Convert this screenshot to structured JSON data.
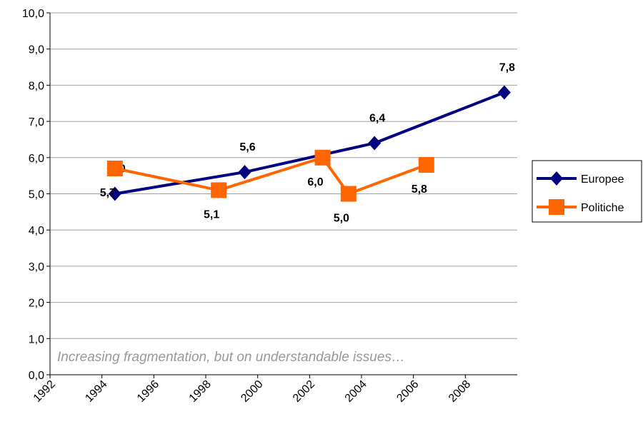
{
  "chart_data": {
    "type": "line",
    "annotation": "Increasing fragmentation, but on understandable issues…",
    "xlim": [
      1992,
      2010
    ],
    "xticks": [
      1992,
      1994,
      1996,
      1998,
      2000,
      2002,
      2004,
      2006,
      2008
    ],
    "ylim": [
      0,
      10
    ],
    "yticks": [
      {
        "value": 0,
        "label": "0,0"
      },
      {
        "value": 1,
        "label": "1,0"
      },
      {
        "value": 2,
        "label": "2,0"
      },
      {
        "value": 3,
        "label": "3,0"
      },
      {
        "value": 4,
        "label": "4,0"
      },
      {
        "value": 5,
        "label": "5,0"
      },
      {
        "value": 6,
        "label": "6,0"
      },
      {
        "value": 7,
        "label": "7,0"
      },
      {
        "value": 8,
        "label": "8,0"
      },
      {
        "value": 9,
        "label": "9,0"
      },
      {
        "value": 10,
        "label": "10,0"
      }
    ],
    "grid": true,
    "legend": "right",
    "series": [
      {
        "name": "Europee",
        "color": "#000080",
        "marker": "diamond",
        "x": [
          1994.5,
          1999.5,
          2004.5,
          2009.5
        ],
        "values": [
          5.0,
          5.6,
          6.4,
          7.8
        ],
        "value_labels": [
          "5,0",
          "5,6",
          "6,4",
          "7,8"
        ]
      },
      {
        "name": "Politiche",
        "color": "#ff6600",
        "marker": "square",
        "x": [
          1994.5,
          1998.5,
          2002.5,
          2003.5,
          2006.5
        ],
        "values": [
          5.7,
          5.1,
          6.0,
          5.0,
          5.8
        ],
        "value_labels": [
          "5,7",
          "5,1",
          "6,0",
          "5,0",
          "5,8"
        ]
      }
    ]
  }
}
